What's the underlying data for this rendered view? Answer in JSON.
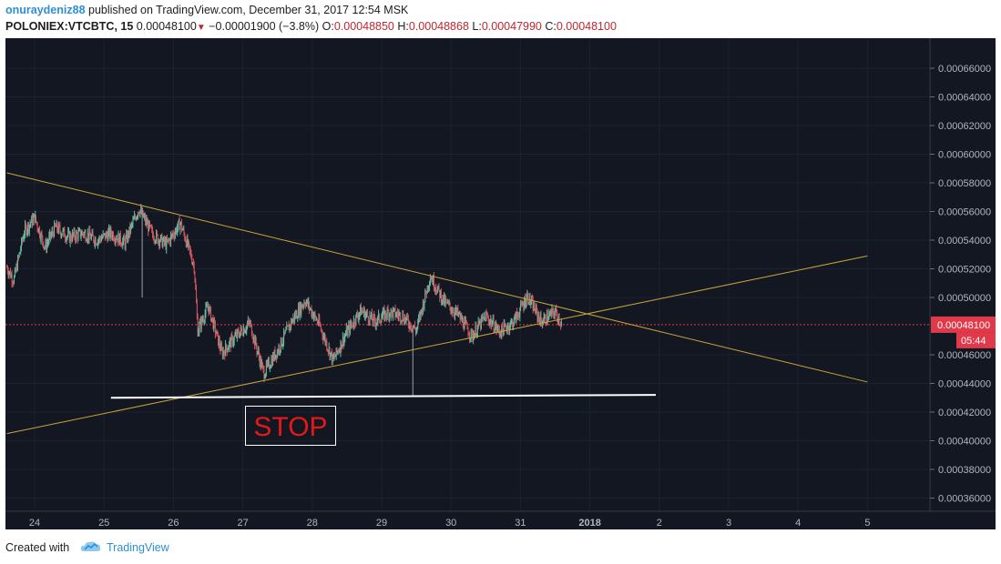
{
  "header": {
    "author": "onuraydeniz88",
    "published_text": " published on TradingView.com, December 31, 2017 12:54 MSK",
    "symbol": "POLONIEX:VTCBTC, 15",
    "last_price": "0.00048100",
    "change": "−0.00001900 (−3.8%)",
    "open_label": "O:",
    "open_value": "0.00048850",
    "high_label": "H:",
    "high_value": "0.00048868",
    "low_label": "L:",
    "low_value": "0.00047990",
    "close_label": "C:",
    "close_value": "0.00048100"
  },
  "chart": {
    "background_color": "#131722",
    "price_axis_ticks": [
      "0.00066000",
      "0.00064000",
      "0.00062000",
      "0.00060000",
      "0.00058000",
      "0.00056000",
      "0.00054000",
      "0.00052000",
      "0.00050000",
      "0.00046000",
      "0.00044000",
      "0.00042000",
      "0.00040000",
      "0.00038000",
      "0.00036000"
    ],
    "time_axis_ticks": [
      "24",
      "25",
      "26",
      "27",
      "28",
      "29",
      "30",
      "31",
      "2018",
      "2",
      "3",
      "4",
      "5"
    ],
    "current_price_label": "0.00048100",
    "countdown_label": "05:44",
    "annotation_text": "STOP",
    "trendline_color": "#c9a33a",
    "support_line_color": "#ffffff",
    "price_line_color": "#e0394a"
  },
  "chart_data": {
    "type": "candlestick",
    "symbol": "POLONIEX:VTCBTC",
    "interval": "15",
    "title": "POLONIEX:VTCBTC, 15",
    "x_ticks": [
      "24",
      "25",
      "26",
      "27",
      "28",
      "29",
      "30",
      "31",
      "2018",
      "2",
      "3",
      "4",
      "5"
    ],
    "y_ticks": [
      0.00066,
      0.00064,
      0.00062,
      0.0006,
      0.00058,
      0.00056,
      0.00054,
      0.00052,
      0.0005,
      0.00046,
      0.00044,
      0.00042,
      0.0004,
      0.00038,
      0.00036
    ],
    "ylim": [
      0.00034,
      0.00068
    ],
    "last_price": 0.000481,
    "ohlc": {
      "open": 0.0004885,
      "high": 0.00048868,
      "low": 0.0004799,
      "close": 0.000481
    },
    "price_path": [
      {
        "day": 23.6,
        "price": 0.000521
      },
      {
        "day": 23.7,
        "price": 0.000512
      },
      {
        "day": 23.85,
        "price": 0.000546
      },
      {
        "day": 24.0,
        "price": 0.000556
      },
      {
        "day": 24.15,
        "price": 0.000535
      },
      {
        "day": 24.3,
        "price": 0.000549
      },
      {
        "day": 24.5,
        "price": 0.000542
      },
      {
        "day": 24.7,
        "price": 0.000545
      },
      {
        "day": 24.9,
        "price": 0.00054
      },
      {
        "day": 25.1,
        "price": 0.000545
      },
      {
        "day": 25.3,
        "price": 0.000538
      },
      {
        "day": 25.5,
        "price": 0.000562
      },
      {
        "day": 25.7,
        "price": 0.000544
      },
      {
        "day": 25.9,
        "price": 0.000537
      },
      {
        "day": 26.1,
        "price": 0.000552
      },
      {
        "day": 26.3,
        "price": 0.000522
      },
      {
        "day": 26.35,
        "price": 0.000477
      },
      {
        "day": 26.5,
        "price": 0.000494
      },
      {
        "day": 26.7,
        "price": 0.000461
      },
      {
        "day": 26.9,
        "price": 0.000473
      },
      {
        "day": 27.1,
        "price": 0.000482
      },
      {
        "day": 27.3,
        "price": 0.000447
      },
      {
        "day": 27.5,
        "price": 0.000463
      },
      {
        "day": 27.7,
        "price": 0.000483
      },
      {
        "day": 27.9,
        "price": 0.000498
      },
      {
        "day": 28.1,
        "price": 0.000481
      },
      {
        "day": 28.3,
        "price": 0.000456
      },
      {
        "day": 28.5,
        "price": 0.000476
      },
      {
        "day": 28.7,
        "price": 0.000491
      },
      {
        "day": 28.9,
        "price": 0.000483
      },
      {
        "day": 29.1,
        "price": 0.00049
      },
      {
        "day": 29.3,
        "price": 0.000487
      },
      {
        "day": 29.5,
        "price": 0.000477
      },
      {
        "day": 29.7,
        "price": 0.000515
      },
      {
        "day": 29.9,
        "price": 0.000497
      },
      {
        "day": 30.1,
        "price": 0.000488
      },
      {
        "day": 30.3,
        "price": 0.000473
      },
      {
        "day": 30.5,
        "price": 0.000487
      },
      {
        "day": 30.7,
        "price": 0.000476
      },
      {
        "day": 30.9,
        "price": 0.000483
      },
      {
        "day": 31.1,
        "price": 0.000501
      },
      {
        "day": 31.3,
        "price": 0.000483
      },
      {
        "day": 31.5,
        "price": 0.00049
      },
      {
        "day": 31.6,
        "price": 0.000481
      }
    ],
    "wicks": [
      {
        "day": 25.55,
        "low": 0.0005,
        "high": 0.000563
      },
      {
        "day": 29.45,
        "low": 0.000431,
        "high": 0.000481
      }
    ],
    "trendlines": [
      {
        "name": "descending",
        "from": {
          "day": 23.6,
          "price": 0.000587
        },
        "to": {
          "day": 36.0,
          "price": 0.000441
        }
      },
      {
        "name": "ascending",
        "from": {
          "day": 23.6,
          "price": 0.000405
        },
        "to": {
          "day": 36.0,
          "price": 0.000529
        }
      },
      {
        "name": "support",
        "from": {
          "day": 25.1,
          "price": 0.00043
        },
        "to": {
          "day": 32.95,
          "price": 0.000432
        }
      }
    ],
    "annotations": [
      {
        "text": "STOP"
      }
    ],
    "grid": true
  },
  "footer": {
    "created_with": "Created with",
    "brand": "TradingView"
  }
}
